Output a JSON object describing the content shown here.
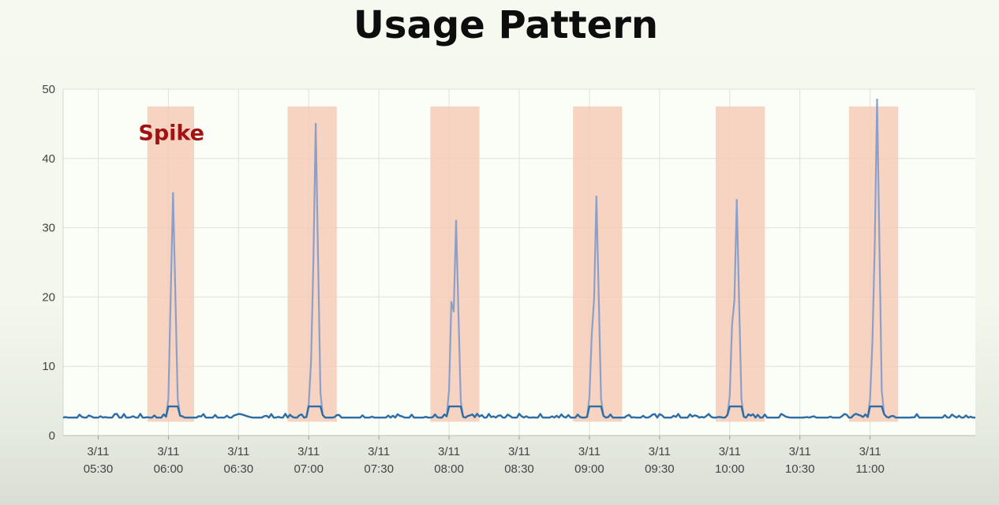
{
  "slide": {
    "title": "Usage Pattern"
  },
  "chart_data": {
    "type": "line",
    "title": "",
    "xlabel": "",
    "ylabel": "",
    "ylim": [
      0,
      50
    ],
    "xlim_minutes_labels": [
      "05:15",
      "11:45"
    ],
    "x_tick_labels": [
      {
        "date": "3/11",
        "time": "05:30"
      },
      {
        "date": "3/11",
        "time": "06:00"
      },
      {
        "date": "3/11",
        "time": "06:30"
      },
      {
        "date": "3/11",
        "time": "07:00"
      },
      {
        "date": "3/11",
        "time": "07:30"
      },
      {
        "date": "3/11",
        "time": "08:00"
      },
      {
        "date": "3/11",
        "time": "08:30"
      },
      {
        "date": "3/11",
        "time": "09:00"
      },
      {
        "date": "3/11",
        "time": "09:30"
      },
      {
        "date": "3/11",
        "time": "10:00"
      },
      {
        "date": "3/11",
        "time": "10:30"
      },
      {
        "date": "3/11",
        "time": "11:00"
      }
    ],
    "y_ticks": [
      0,
      10,
      20,
      30,
      40,
      50
    ],
    "grid": true,
    "baseline": 2.6,
    "spikes": [
      {
        "time": "06:02",
        "peak": 35,
        "shoulder": null
      },
      {
        "time": "07:03",
        "peak": 45,
        "shoulder": 11
      },
      {
        "time": "08:03",
        "peak": 31,
        "shoulder": 20
      },
      {
        "time": "09:03",
        "peak": 34.5,
        "shoulder": 15
      },
      {
        "time": "10:03",
        "peak": 34,
        "shoulder": 16.5
      },
      {
        "time": "11:03",
        "peak": 48.5,
        "shoulder": 14
      }
    ],
    "highlight_bands": [
      {
        "start": "05:51",
        "end": "06:11"
      },
      {
        "start": "06:51",
        "end": "07:12"
      },
      {
        "start": "07:52",
        "end": "08:13"
      },
      {
        "start": "08:53",
        "end": "09:14"
      },
      {
        "start": "09:54",
        "end": "10:15"
      },
      {
        "start": "10:51",
        "end": "11:12"
      }
    ],
    "band_color": "#f6cbb8",
    "line_color": "#2e6ea5",
    "spike_color": "#8b9fc9",
    "annotations": [
      {
        "text": "Spike",
        "time": "06:00",
        "value": 44
      }
    ]
  }
}
